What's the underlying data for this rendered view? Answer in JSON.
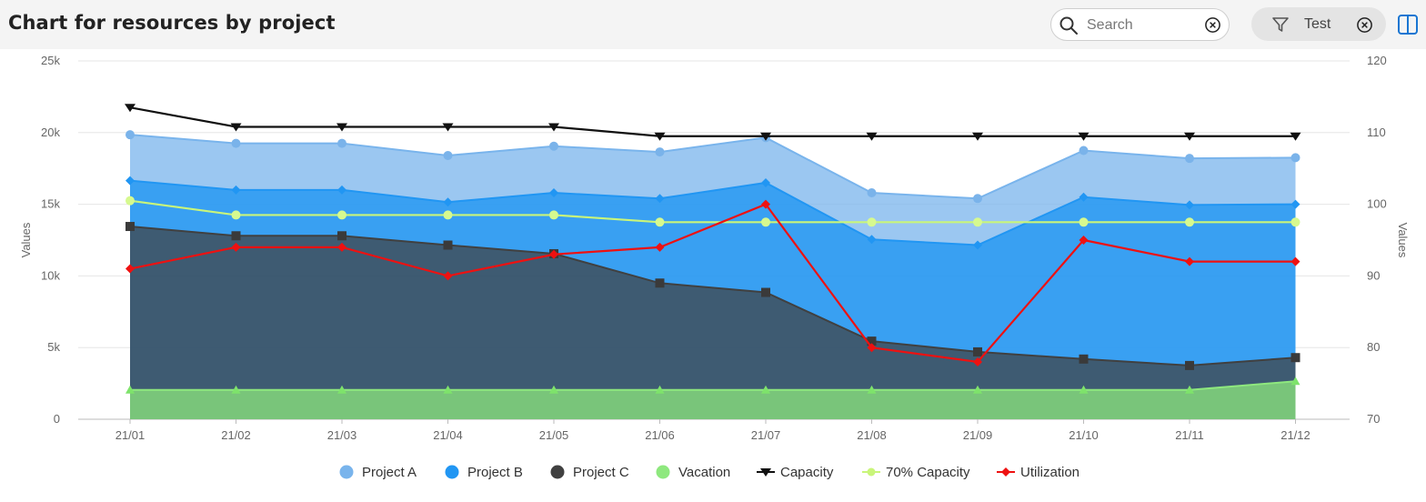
{
  "header": {
    "title": "Chart for resources by project",
    "search": {
      "placeholder": "Search",
      "icon": "search-icon",
      "clear_icon": "clear-circle-icon"
    },
    "filter": {
      "label": "Test",
      "icon": "filter-funnel-icon",
      "clear_icon": "clear-circle-icon"
    },
    "panel_toggle_icon": "split-panel-icon"
  },
  "chart_data": {
    "type": "area",
    "x": [
      "21/01",
      "21/02",
      "21/03",
      "21/04",
      "21/05",
      "21/06",
      "21/07",
      "21/08",
      "21/09",
      "21/10",
      "21/11",
      "21/12"
    ],
    "ylabel": "Values",
    "y2label": "Values",
    "ylim": [
      0,
      25000
    ],
    "y2lim": [
      70,
      120
    ],
    "yticks": [
      "0",
      "5k",
      "10k",
      "15k",
      "20k",
      "25k"
    ],
    "y2ticks": [
      "70",
      "80",
      "90",
      "100",
      "110",
      "120"
    ],
    "grid": true,
    "legend_position": "bottom-center",
    "stacked_areas": [
      {
        "name": "Project A",
        "color": "#79b4ec",
        "top": [
          19850,
          19250,
          19250,
          18400,
          19050,
          18650,
          19650,
          15800,
          15400,
          18750,
          18200,
          18250
        ]
      },
      {
        "name": "Project B",
        "color": "#2196f3",
        "top": [
          16650,
          16000,
          16000,
          15150,
          15800,
          15400,
          16500,
          12550,
          12150,
          15500,
          14950,
          15000
        ]
      },
      {
        "name": "Project C",
        "color": "#404040",
        "top": [
          13450,
          12800,
          12800,
          12150,
          11550,
          9500,
          8850,
          5450,
          4700,
          4200,
          3750,
          4300
        ]
      },
      {
        "name": "Vacation",
        "color": "#8ee87e",
        "top": [
          2050,
          2050,
          2050,
          2050,
          2050,
          2050,
          2050,
          2050,
          2050,
          2050,
          2050,
          2650
        ]
      }
    ],
    "lines": [
      {
        "name": "Capacity",
        "axis": "right",
        "color": "#111111",
        "values": [
          113.5,
          110.8,
          110.8,
          110.8,
          110.8,
          109.5,
          109.5,
          109.5,
          109.5,
          109.5,
          109.5,
          109.5
        ]
      },
      {
        "name": "70% Capacity",
        "axis": "right",
        "color": "#c9f57a",
        "values": [
          100.5,
          98.5,
          98.5,
          98.5,
          98.5,
          97.5,
          97.5,
          97.5,
          97.5,
          97.5,
          97.5,
          97.5
        ]
      },
      {
        "name": "Utilization",
        "axis": "right",
        "color": "#ee1111",
        "values": [
          91,
          94,
          94,
          90,
          93,
          94,
          100,
          80,
          78,
          95,
          92,
          92
        ]
      }
    ]
  }
}
